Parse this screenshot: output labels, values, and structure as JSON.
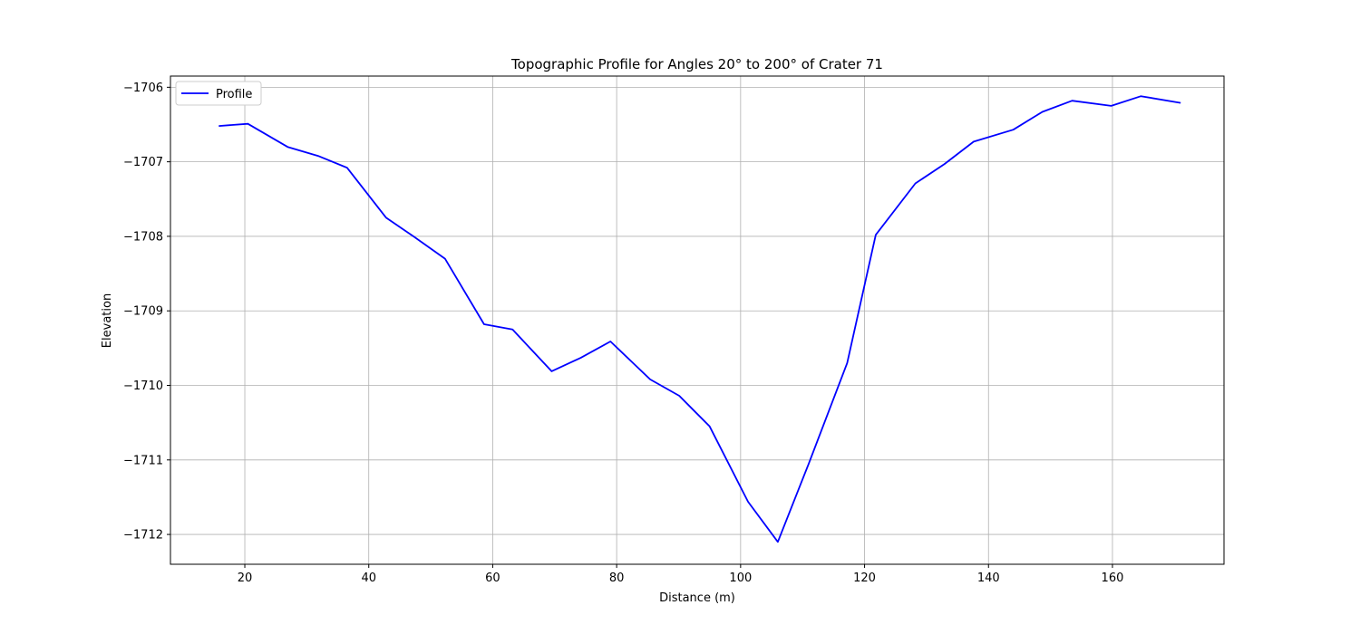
{
  "chart_data": {
    "type": "line",
    "title": "Topographic Profile for Angles 20° to 200° of Crater 71",
    "xlabel": "Distance (m)",
    "ylabel": "Elevation",
    "xlim": [
      8,
      178
    ],
    "ylim": [
      -1712.4,
      -1705.85
    ],
    "xticks": [
      20,
      40,
      60,
      80,
      100,
      120,
      140,
      160
    ],
    "xtick_labels": [
      "20",
      "40",
      "60",
      "80",
      "100",
      "120",
      "140",
      "160"
    ],
    "yticks": [
      -1712,
      -1711,
      -1710,
      -1709,
      -1708,
      -1707,
      -1706
    ],
    "ytick_labels": [
      "−1712",
      "−1711",
      "−1710",
      "−1709",
      "−1708",
      "−1707",
      "−1706"
    ],
    "grid": true,
    "legend_position": "top-left",
    "series": [
      {
        "name": "Profile",
        "color": "#0000ff",
        "x": [
          15.8,
          20.5,
          26.9,
          31.8,
          36.5,
          42.8,
          47.2,
          52.3,
          58.6,
          63.2,
          69.5,
          74.2,
          79.0,
          85.4,
          90.1,
          95.0,
          101.2,
          106.0,
          111.0,
          117.2,
          121.8,
          128.2,
          132.9,
          137.6,
          144.0,
          148.7,
          153.5,
          159.8,
          164.6,
          171.0
        ],
        "y": [
          -1706.52,
          -1706.49,
          -1706.8,
          -1706.92,
          -1707.08,
          -1707.75,
          -1708.0,
          -1708.3,
          -1709.18,
          -1709.25,
          -1709.81,
          -1709.63,
          -1709.41,
          -1709.92,
          -1710.14,
          -1710.55,
          -1711.56,
          -1712.1,
          -1711.05,
          -1709.7,
          -1707.98,
          -1707.29,
          -1707.03,
          -1706.73,
          -1706.57,
          -1706.33,
          -1706.18,
          -1706.25,
          -1706.12,
          -1706.21
        ]
      }
    ]
  }
}
